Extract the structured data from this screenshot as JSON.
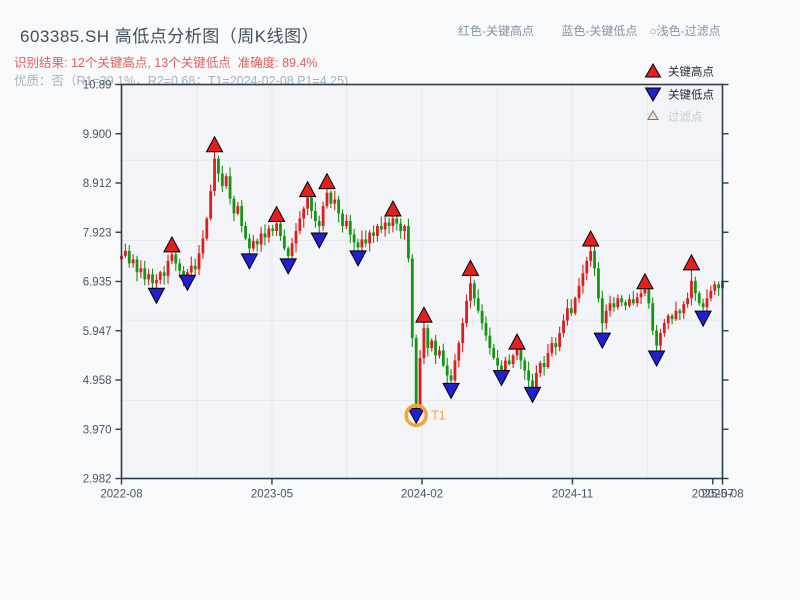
{
  "header": {
    "title": "603385.SH 高低点分析图（周K线图）",
    "result_line": "识别结果: 12个关键高点, 13个关键低点  准确度: 89.4%",
    "quality_line": "优质：否（R1=39.1%，R2=0.68；T1=2024-02-08 P1=4.25)",
    "legend_note": "红色-关键高点　　 蓝色-关键低点　○浅色-过滤点"
  },
  "legend": {
    "high_label": "关键高点",
    "low_label": "关键低点",
    "filter_label": "过滤点"
  },
  "colors": {
    "up_candle": "#db1f1f",
    "down_candle": "#159415",
    "high_marker": "#e32020",
    "low_marker": "#2020cf",
    "filter_marker_fill": "#f6ded5",
    "t1_orange": "#f0a63c",
    "axis_border": "#2d3b50",
    "gridline": "#e4e7ec",
    "tick_label": "#4a5568",
    "plot_background": "#f2f4f7",
    "figure_background": "#f8f9fb",
    "legend_text": "#1f2733",
    "legend_filter_text": "#c3cbd3"
  },
  "chart_data": {
    "type": "candlestick",
    "title": "603385.SH 高低点分析图（周K线图）",
    "x_axis": "weeks from 2022-08 to 2025-08",
    "ylim": [
      2.982,
      10.89
    ],
    "y_tick_labels": [
      "10.89",
      "9.900",
      "8.912",
      "7.923",
      "6.935",
      "5.947",
      "4.958",
      "3.970",
      "2.982"
    ],
    "x_ticks": [
      {
        "label": "2022-08",
        "week": 0
      },
      {
        "label": "2023-05",
        "week": 38.8
      },
      {
        "label": "2024-02",
        "week": 77.5
      },
      {
        "label": "2024-11",
        "week": 116.3
      },
      {
        "label": "2025-07",
        "week": 152.5
      },
      {
        "label": "2025-08",
        "week": 155
      }
    ],
    "x_gridline_weeks": [
      19.4,
      38.8,
      58.1,
      77.5,
      96.9,
      116.3,
      135.6
    ],
    "h_gridline_prices": [
      9.37,
      7.76,
      6.16,
      4.55
    ],
    "weeks_total": 156,
    "weekly_closes": [
      7.45,
      7.55,
      7.3,
      7.38,
      7.12,
      7.2,
      6.98,
      7.08,
      6.9,
      6.97,
      7.12,
      7.05,
      7.35,
      7.48,
      7.3,
      7.15,
      7.02,
      7.12,
      7.25,
      7.18,
      7.5,
      7.8,
      8.2,
      8.75,
      9.4,
      9.1,
      8.85,
      9.05,
      8.6,
      8.3,
      8.45,
      8.05,
      7.8,
      7.6,
      7.75,
      7.68,
      7.9,
      7.82,
      8.0,
      7.95,
      8.1,
      7.85,
      7.6,
      7.45,
      7.7,
      7.95,
      8.2,
      8.4,
      8.62,
      8.35,
      8.15,
      8.05,
      8.45,
      8.72,
      8.5,
      8.58,
      8.3,
      8.05,
      8.15,
      7.88,
      7.72,
      7.62,
      7.78,
      7.7,
      7.92,
      7.85,
      8.05,
      7.98,
      8.12,
      8.05,
      8.2,
      8.1,
      7.95,
      8.05,
      7.4,
      5.8,
      4.45,
      5.4,
      6.0,
      5.6,
      5.75,
      5.45,
      5.55,
      5.25,
      5.05,
      4.95,
      5.35,
      5.7,
      6.1,
      6.55,
      6.9,
      6.6,
      6.35,
      6.1,
      5.85,
      5.6,
      5.4,
      5.25,
      5.15,
      5.35,
      5.28,
      5.45,
      5.58,
      5.35,
      5.15,
      4.95,
      4.82,
      5.1,
      5.3,
      5.22,
      5.5,
      5.7,
      5.62,
      5.9,
      6.15,
      6.4,
      6.3,
      6.6,
      6.85,
      7.1,
      7.35,
      7.55,
      7.2,
      6.6,
      6.1,
      6.35,
      6.5,
      6.42,
      6.6,
      6.52,
      6.45,
      6.58,
      6.5,
      6.62,
      6.7,
      6.78,
      6.5,
      5.95,
      5.65,
      5.9,
      6.1,
      6.25,
      6.18,
      6.35,
      6.3,
      6.48,
      6.6,
      6.95,
      6.7,
      6.5,
      6.42,
      6.6,
      6.75,
      6.88,
      6.8,
      6.95
    ],
    "key_highs": [
      {
        "week": 13,
        "price": 7.67
      },
      {
        "week": 24,
        "price": 9.68
      },
      {
        "week": 40,
        "price": 8.28
      },
      {
        "week": 48,
        "price": 8.78
      },
      {
        "week": 53,
        "price": 8.94
      },
      {
        "week": 70,
        "price": 8.39
      },
      {
        "week": 78,
        "price": 6.26
      },
      {
        "week": 90,
        "price": 7.2
      },
      {
        "week": 102,
        "price": 5.72
      },
      {
        "week": 121,
        "price": 7.79
      },
      {
        "week": 135,
        "price": 6.93
      },
      {
        "week": 147,
        "price": 7.31
      }
    ],
    "key_lows": [
      {
        "week": 9,
        "price": 6.66
      },
      {
        "week": 17,
        "price": 6.92
      },
      {
        "week": 33,
        "price": 7.35
      },
      {
        "week": 43,
        "price": 7.25
      },
      {
        "week": 51,
        "price": 7.77
      },
      {
        "week": 61,
        "price": 7.41
      },
      {
        "week": 76,
        "price": 4.25
      },
      {
        "week": 85,
        "price": 4.75
      },
      {
        "week": 98,
        "price": 5.01
      },
      {
        "week": 106,
        "price": 4.67
      },
      {
        "week": 124,
        "price": 5.76
      },
      {
        "week": 138,
        "price": 5.4
      },
      {
        "week": 150,
        "price": 6.2
      }
    ],
    "t1_marker": {
      "week": 76,
      "price": 4.25,
      "label": "T1",
      "date": "2024-02-08"
    },
    "counts": {
      "key_highs": 12,
      "key_lows": 13,
      "accuracy": "89.4%"
    }
  }
}
